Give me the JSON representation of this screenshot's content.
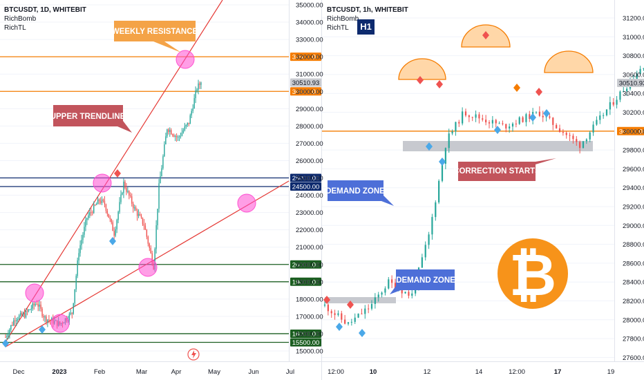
{
  "left": {
    "title": "BTCUSDT, 1D, WHITEBIT",
    "indicators": [
      "RichBomb",
      "RichTL"
    ],
    "yticks": [
      35000,
      34000,
      33000,
      32000,
      31000,
      30000,
      29000,
      28000,
      27000,
      26000,
      25000,
      24000,
      23000,
      22000,
      21000,
      20000,
      19000,
      18000,
      17000,
      16000,
      15000
    ],
    "xticks": [
      "Dec",
      "2023",
      "Feb",
      "Mar",
      "Apr",
      "May",
      "Jun",
      "Jul"
    ],
    "level_labels": [
      {
        "text": "32000.00",
        "value": 32000,
        "color": "#f57c00"
      },
      {
        "text": "30510.93",
        "value": 30510.93,
        "color": "#c9cbd0",
        "dark": true
      },
      {
        "text": "30000.00",
        "value": 30000,
        "color": "#f57c00"
      },
      {
        "text": "25000.00",
        "value": 25000,
        "color": "#0d2a6e"
      },
      {
        "text": "24500.00",
        "value": 24500,
        "color": "#0d2a6e"
      },
      {
        "text": "20000.00",
        "value": 20000,
        "color": "#1b5e20"
      },
      {
        "text": "19000.00",
        "value": 19000,
        "color": "#1b5e20"
      },
      {
        "text": "16000.00",
        "value": 16000,
        "color": "#1b5e20"
      },
      {
        "text": "15500.00",
        "value": 15500,
        "color": "#1b5e20"
      }
    ],
    "callouts": {
      "weekly_resistance": "WEEKLY RESISTANCE",
      "upper_trendline": "UPPER TRENDLINE"
    }
  },
  "right": {
    "title": "BTCUSDT, 1h, WHITEBIT",
    "indicators": [
      "RichBomb",
      "RichTL"
    ],
    "badge": "H1",
    "yticks": [
      31200,
      31000,
      30800,
      30600,
      30400,
      30200,
      30000,
      29800,
      29600,
      29400,
      29200,
      29000,
      28800,
      28600,
      28400,
      28200,
      28000,
      27800,
      27600
    ],
    "xticks": [
      "12:00",
      "10",
      "12",
      "14",
      "12:00",
      "17",
      "19"
    ],
    "level_labels": [
      {
        "text": "30510.93",
        "value": 30510.93,
        "color": "#c9cbd0",
        "dark": true
      },
      {
        "text": "30000.00",
        "value": 30000,
        "color": "#f57c00"
      }
    ],
    "callouts": {
      "demand_zone_upper": "DEMAND ZONE",
      "demand_zone_lower": "DEMAND ZONE",
      "correction_starts": "CORRECTION STARTS"
    },
    "logo_symbol": "₿"
  },
  "colors": {
    "up": "#26a69a",
    "down": "#ef5350",
    "orange": "#f57c00",
    "navy": "#0d2a6e",
    "green": "#1b5e20",
    "red_line": "#e53935",
    "pink": "#ff4fd1"
  },
  "chart_data": [
    {
      "type": "candlestick",
      "symbol": "BTCUSDT",
      "timeframe": "1D",
      "exchange": "WHITEBIT",
      "ylim": [
        15000,
        35000
      ],
      "horizontal_levels": [
        32000,
        30000,
        25000,
        24500,
        20000,
        19000,
        16000,
        15500
      ],
      "last_price": 30510.93,
      "close_path": [
        {
          "date": "2022-11-21",
          "close": 15800
        },
        {
          "date": "2022-11-28",
          "close": 16900
        },
        {
          "date": "2022-12-05",
          "close": 17100
        },
        {
          "date": "2022-12-14",
          "close": 17800
        },
        {
          "date": "2022-12-20",
          "close": 16900
        },
        {
          "date": "2022-12-31",
          "close": 16550
        },
        {
          "date": "2023-01-09",
          "close": 17200
        },
        {
          "date": "2023-01-14",
          "close": 20800
        },
        {
          "date": "2023-01-20",
          "close": 22700
        },
        {
          "date": "2023-01-29",
          "close": 23700
        },
        {
          "date": "2023-02-02",
          "close": 23500
        },
        {
          "date": "2023-02-09",
          "close": 21800
        },
        {
          "date": "2023-02-16",
          "close": 24700
        },
        {
          "date": "2023-02-24",
          "close": 23200
        },
        {
          "date": "2023-03-03",
          "close": 22300
        },
        {
          "date": "2023-03-10",
          "close": 19900
        },
        {
          "date": "2023-03-14",
          "close": 24500
        },
        {
          "date": "2023-03-20",
          "close": 27900
        },
        {
          "date": "2023-03-28",
          "close": 27300
        },
        {
          "date": "2023-04-05",
          "close": 28200
        },
        {
          "date": "2023-04-11",
          "close": 30200
        },
        {
          "date": "2023-04-14",
          "close": 30510.93
        }
      ]
    },
    {
      "type": "candlestick",
      "symbol": "BTCUSDT",
      "timeframe": "1h",
      "exchange": "WHITEBIT",
      "ylim": [
        27600,
        31200
      ],
      "horizontal_levels": [
        30000
      ],
      "last_price": 30510.93,
      "zones": [
        {
          "label": "demand zone",
          "low": 28170,
          "high": 28230
        },
        {
          "label": "correction zone",
          "low": 29800,
          "high": 29880
        }
      ],
      "close_path": [
        {
          "time": "2023-04-09 10:00",
          "close": 28150
        },
        {
          "time": "2023-04-09 18:00",
          "close": 27950
        },
        {
          "time": "2023-04-10 02:00",
          "close": 28150
        },
        {
          "time": "2023-04-10 08:00",
          "close": 28400
        },
        {
          "time": "2023-04-10 16:00",
          "close": 28250
        },
        {
          "time": "2023-04-10 22:00",
          "close": 28900
        },
        {
          "time": "2023-04-11 04:00",
          "close": 29900
        },
        {
          "time": "2023-04-11 10:00",
          "close": 30200
        },
        {
          "time": "2023-04-12 00:00",
          "close": 30050
        },
        {
          "time": "2023-04-12 12:00",
          "close": 30200
        },
        {
          "time": "2023-04-13 02:00",
          "close": 29850
        },
        {
          "time": "2023-04-13 12:00",
          "close": 30250
        },
        {
          "time": "2023-04-14 00:00",
          "close": 30700
        },
        {
          "time": "2023-04-14 06:00",
          "close": 30900
        },
        {
          "time": "2023-04-14 14:00",
          "close": 30350
        },
        {
          "time": "2023-04-15 00:00",
          "close": 30050
        },
        {
          "time": "2023-04-15 08:00",
          "close": 30450
        },
        {
          "time": "2023-04-15 20:00",
          "close": 30350
        },
        {
          "time": "2023-04-16 08:00",
          "close": 30250
        },
        {
          "time": "2023-04-16 16:00",
          "close": 30280
        },
        {
          "time": "2023-04-17 00:00",
          "close": 30510.93
        }
      ]
    }
  ]
}
